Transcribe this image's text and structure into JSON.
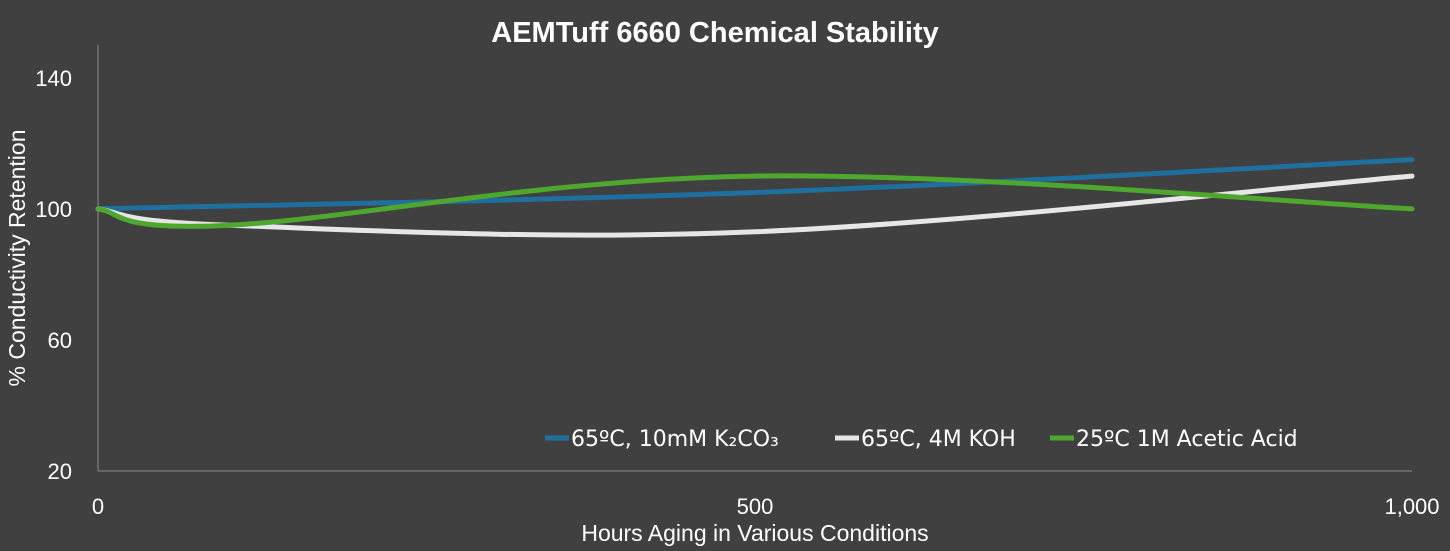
{
  "chart_data": {
    "type": "line",
    "title": "AEMTuff 6660 Chemical Stability",
    "xlabel": "Hours Aging in Various Conditions",
    "ylabel": "% Conductivity Retention",
    "xlim": [
      0,
      1000
    ],
    "ylim": [
      20,
      150
    ],
    "xticks": [
      0,
      500,
      1000
    ],
    "xtick_labels": [
      "0",
      "500",
      "1,000"
    ],
    "yticks": [
      20,
      60,
      100,
      140
    ],
    "ytick_labels": [
      "20",
      "60",
      "100",
      "140"
    ],
    "grid": false,
    "legend_position": "bottom-right",
    "series": [
      {
        "name": "65ºC, 10mM K₂CO₃",
        "color": "#1f6f9f",
        "x": [
          0,
          500,
          1000
        ],
        "y": [
          100,
          105,
          115
        ]
      },
      {
        "name": "65ºC, 4M KOH",
        "color": "#e6e6e6",
        "x": [
          0,
          100,
          500,
          1000
        ],
        "y": [
          100,
          95,
          93,
          110
        ]
      },
      {
        "name": "25ºC 1M Acetic Acid",
        "color": "#4ea72e",
        "x": [
          0,
          100,
          500,
          1000
        ],
        "y": [
          100,
          95,
          110,
          100
        ]
      }
    ]
  }
}
